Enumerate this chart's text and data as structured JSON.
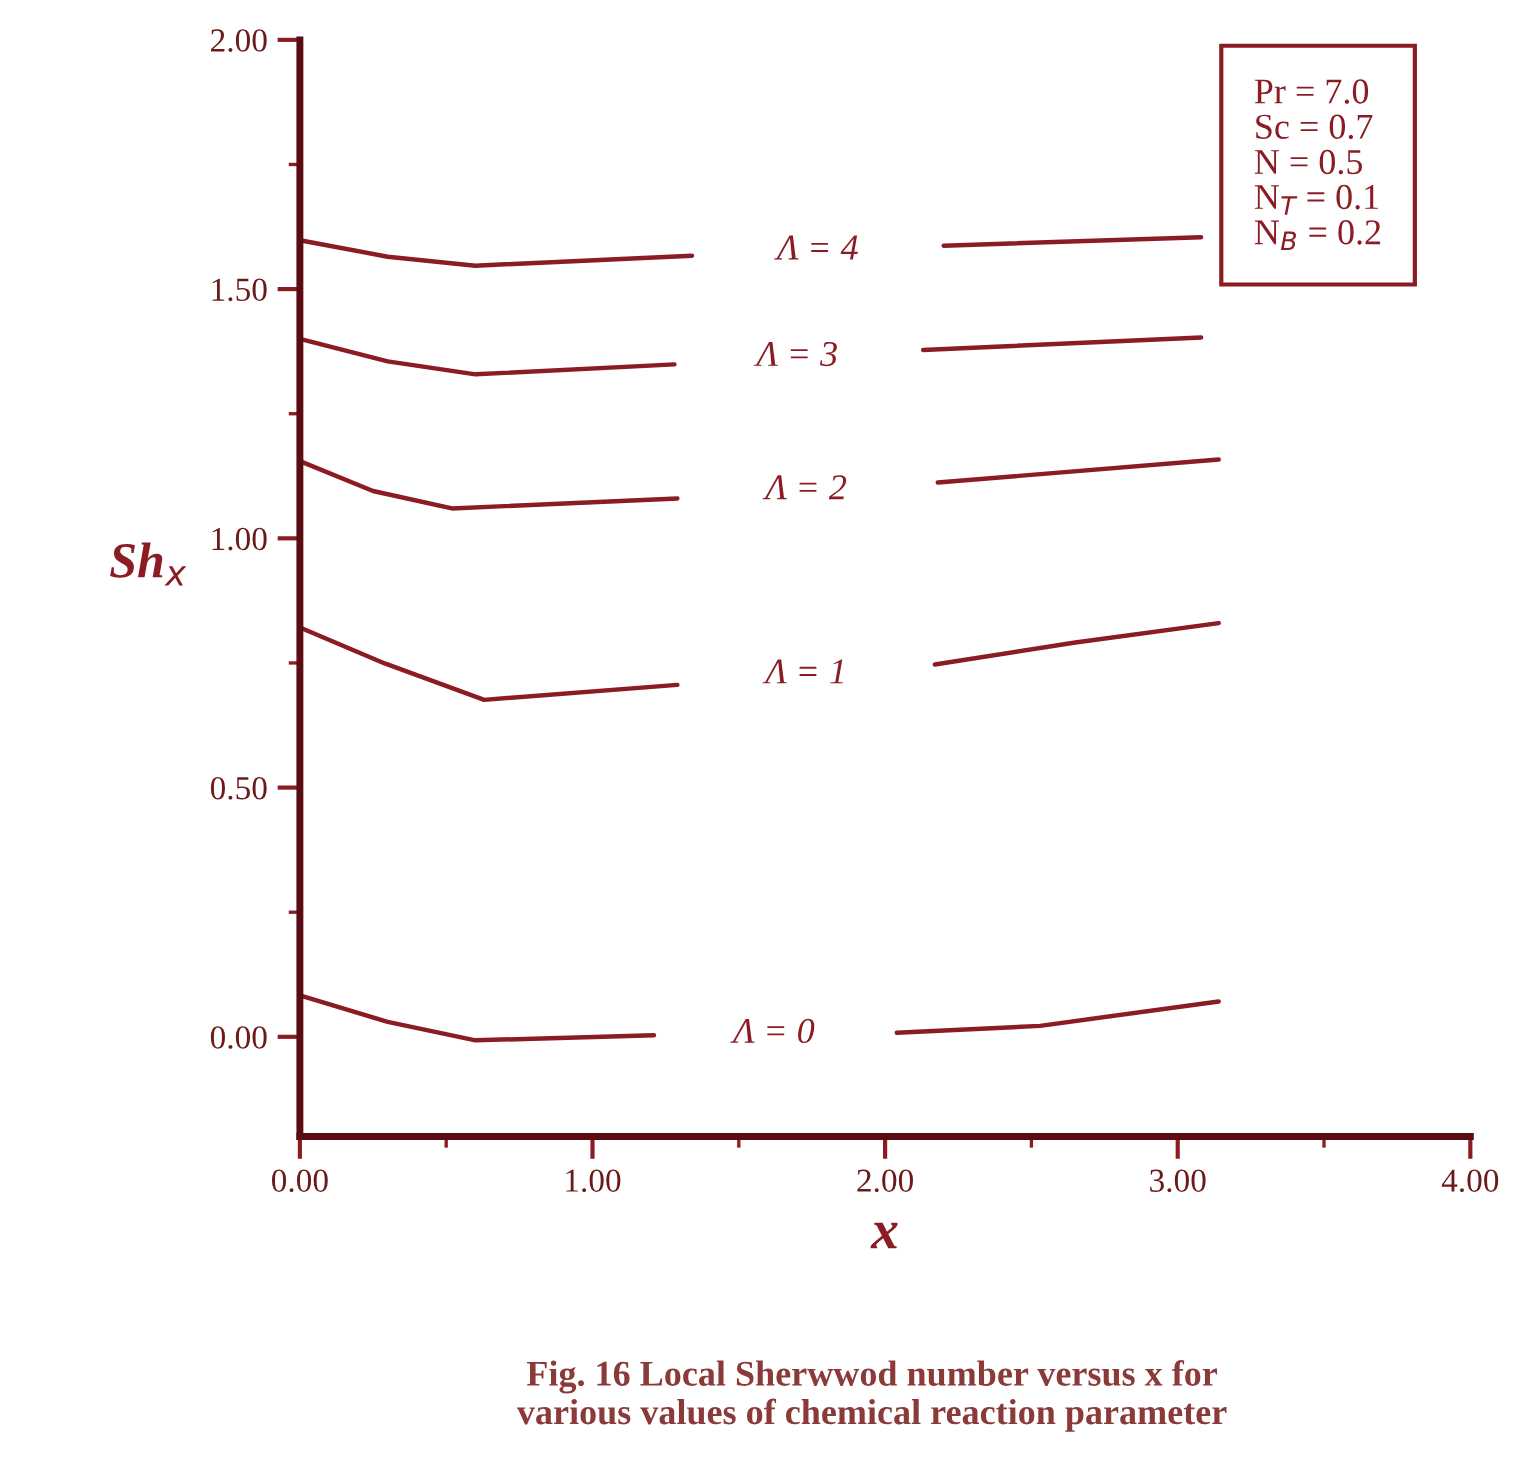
{
  "chart_data": {
    "type": "line",
    "xlabel": "x",
    "ylabel": "Sh$_{x}$",
    "xlim": [
      0,
      4
    ],
    "ylim": [
      -0.2,
      2.0
    ],
    "xticks": [
      {
        "value": 0,
        "label": "0.00"
      },
      {
        "value": 1,
        "label": "1.00"
      },
      {
        "value": 2,
        "label": "2.00"
      },
      {
        "value": 3,
        "label": "3.00"
      },
      {
        "value": 4,
        "label": "4.00"
      }
    ],
    "yticks": [
      {
        "value": 0,
        "label": "0.00"
      },
      {
        "value": 0.5,
        "label": "0.50"
      },
      {
        "value": 1,
        "label": "1.00"
      },
      {
        "value": 1.5,
        "label": "1.50"
      },
      {
        "value": 2,
        "label": "2.00"
      }
    ],
    "grid": false,
    "legend": false,
    "marker": "none",
    "line_style": "solid",
    "series": [
      {
        "name": "Λ = 4",
        "color": "#8b1c24",
        "x": [
          0,
          0.3,
          0.6,
          1.34,
          1.77,
          2.2,
          3.08
        ],
        "values": [
          1.598,
          1.565,
          1.547,
          1.567,
          null,
          1.587,
          1.604
        ]
      },
      {
        "name": "Λ = 3",
        "color": "#8b1c24",
        "x": [
          0,
          0.3,
          0.6,
          1.28,
          1.7,
          2.13,
          3.08
        ],
        "values": [
          1.4,
          1.355,
          1.329,
          1.349,
          null,
          1.378,
          1.403
        ]
      },
      {
        "name": "Λ = 2",
        "color": "#8b1c24",
        "x": [
          0,
          0.25,
          0.52,
          1.29,
          1.73,
          2.18,
          3.14
        ],
        "values": [
          1.155,
          1.095,
          1.06,
          1.08,
          null,
          1.112,
          1.158
        ]
      },
      {
        "name": "Λ = 1",
        "color": "#8b1c24",
        "x": [
          0,
          0.29,
          0.63,
          1.29,
          1.73,
          2.17,
          2.65,
          3.14
        ],
        "values": [
          0.821,
          0.749,
          0.676,
          0.706,
          null,
          0.747,
          0.791,
          0.83
        ]
      },
      {
        "name": "Λ = 0",
        "color": "#8b1c24",
        "x": [
          0,
          0.3,
          0.6,
          1.21,
          1.62,
          2.04,
          2.53,
          3.14
        ],
        "values": [
          0.083,
          0.03,
          -0.007,
          0.003,
          null,
          0.008,
          0.022,
          0.071
        ]
      }
    ],
    "annotations": [
      "Pr = 7.0",
      "Sc = 0.7",
      "N = 0.5",
      "N$_{T}$ = 0.1",
      "N$_{B}$ = 0.2",
      "Fig. 16 Local Sherwwod number versus x for\nvarious values of chemical reaction parameter"
    ]
  }
}
